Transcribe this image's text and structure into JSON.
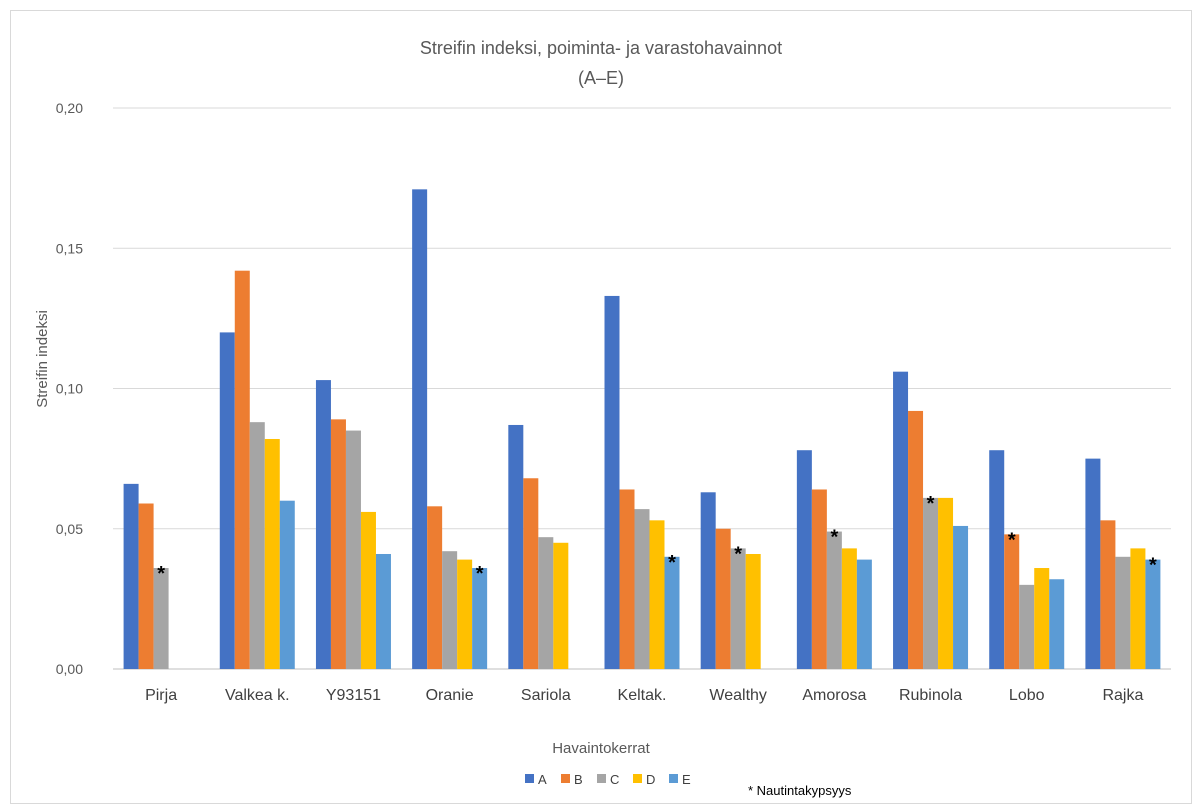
{
  "chart_data": {
    "type": "bar",
    "title": "Streifin indeksi, poiminta- ja varastohavainnot",
    "subtitle": "(A–E)",
    "xlabel": "Havaintokerrat",
    "ylabel": "Streifin indeksi",
    "ylim": [
      0,
      0.2
    ],
    "yticks": [
      0,
      0.05,
      0.1,
      0.15,
      0.2
    ],
    "ytick_labels": [
      "0,00",
      "0,05",
      "0,10",
      "0,15",
      "0,20"
    ],
    "grid": true,
    "legend_position": "bottom",
    "categories": [
      "Pirja",
      "Valkea k.",
      "Y93151",
      "Oranie",
      "Sariola",
      "Keltak.",
      "Wealthy",
      "Amorosa",
      "Rubinola",
      "Lobo",
      "Rajka"
    ],
    "series": [
      {
        "name": "A",
        "color": "#4472C4",
        "values": [
          0.066,
          0.12,
          0.103,
          0.171,
          0.087,
          0.133,
          0.063,
          0.078,
          0.106,
          0.078,
          0.075
        ]
      },
      {
        "name": "B",
        "color": "#ED7D31",
        "values": [
          0.059,
          0.142,
          0.089,
          0.058,
          0.068,
          0.064,
          0.05,
          0.064,
          0.092,
          0.048,
          0.053
        ]
      },
      {
        "name": "C",
        "color": "#A5A5A5",
        "values": [
          0.036,
          0.088,
          0.085,
          0.042,
          0.047,
          0.057,
          0.043,
          0.049,
          0.061,
          0.03,
          0.04
        ]
      },
      {
        "name": "D",
        "color": "#FFC000",
        "values": [
          null,
          0.082,
          0.056,
          0.039,
          0.045,
          0.053,
          0.041,
          0.043,
          0.061,
          0.036,
          0.043
        ]
      },
      {
        "name": "E",
        "color": "#5B9BD5",
        "values": [
          null,
          0.06,
          0.041,
          0.036,
          null,
          0.04,
          null,
          0.039,
          0.051,
          0.032,
          0.039
        ]
      }
    ],
    "star_markers": [
      {
        "category": "Pirja",
        "series": "C"
      },
      {
        "category": "Oranie",
        "series": "E"
      },
      {
        "category": "Keltak.",
        "series": "E"
      },
      {
        "category": "Wealthy",
        "series": "C"
      },
      {
        "category": "Amorosa",
        "series": "C"
      },
      {
        "category": "Rubinola",
        "series": "C"
      },
      {
        "category": "Lobo",
        "series": "B"
      },
      {
        "category": "Rajka",
        "series": "E"
      }
    ],
    "star_symbol": "*",
    "annotation": "* Nautintakypsyys"
  }
}
